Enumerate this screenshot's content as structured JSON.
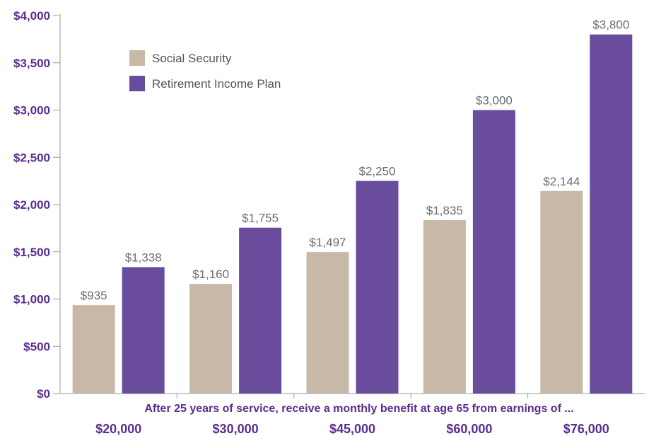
{
  "chart_data": {
    "type": "bar",
    "xlabel": "After 25 years of service, receive a monthly benefit at age 65 from earnings of ...",
    "ylabel": "",
    "ylim": [
      0,
      4000
    ],
    "y_ticks": [
      0,
      500,
      1000,
      1500,
      2000,
      2500,
      3000,
      3500,
      4000
    ],
    "y_tick_labels": [
      "$0",
      "$500",
      "$1,000",
      "$1,500",
      "$2,000",
      "$2,500",
      "$3,000",
      "$3,500",
      "$4,000"
    ],
    "categories": [
      "$20,000",
      "$30,000",
      "$45,000",
      "$60,000",
      "$76,000"
    ],
    "series": [
      {
        "name": "Social Security",
        "color": "#c8b8a8",
        "values": [
          935,
          1160,
          1497,
          1835,
          2144
        ],
        "labels": [
          "$935",
          "$1,160",
          "$1,497",
          "$1,835",
          "$2,144"
        ]
      },
      {
        "name": "Retirement Income Plan",
        "color": "#6a4c9c",
        "values": [
          1338,
          1755,
          2250,
          3000,
          3800
        ],
        "labels": [
          "$1,338",
          "$1,755",
          "$2,250",
          "$3,000",
          "$3,800"
        ]
      }
    ],
    "legend_position": "top-left",
    "grid": false,
    "colors": {
      "axis_text": "#5b2c8f",
      "axis_line": "#999999",
      "data_label": "#6d6d6d"
    }
  }
}
